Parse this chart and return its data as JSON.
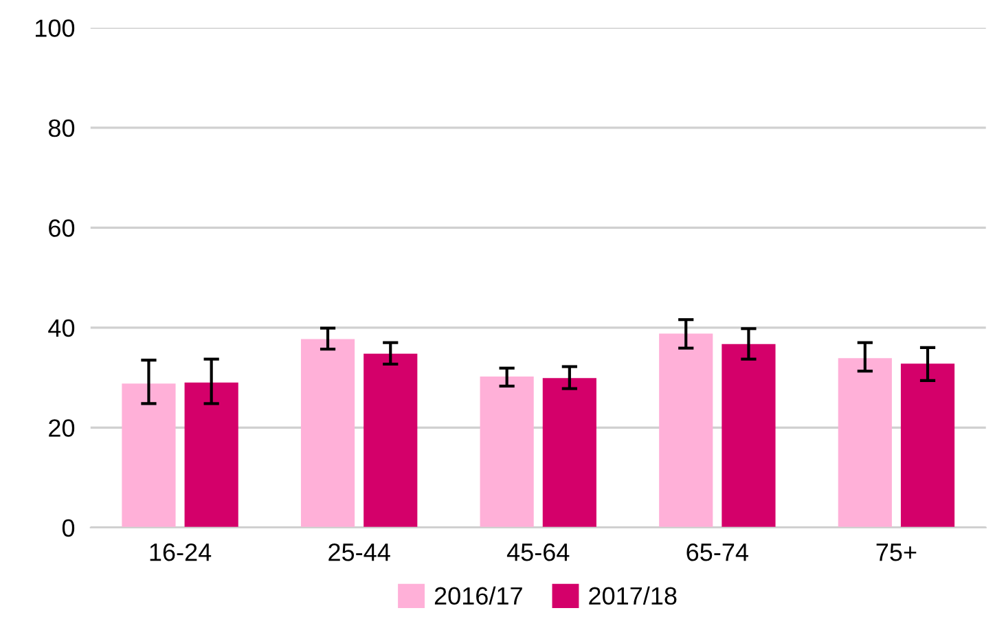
{
  "chart_data": {
    "type": "bar",
    "categories": [
      "16-24",
      "25-44",
      "45-64",
      "65-74",
      "75+"
    ],
    "series": [
      {
        "name": "2016/17",
        "color": "#ffb0d8",
        "values": [
          28.8,
          37.7,
          30.2,
          38.8,
          33.9
        ],
        "errors": [
          [
            24.8,
            33.5
          ],
          [
            35.7,
            39.9
          ],
          [
            28.3,
            31.9
          ],
          [
            35.9,
            41.6
          ],
          [
            31.3,
            37.0
          ]
        ]
      },
      {
        "name": "2017/18",
        "color": "#d4006a",
        "values": [
          29.0,
          34.8,
          29.9,
          36.7,
          32.8
        ],
        "errors": [
          [
            24.8,
            33.7
          ],
          [
            32.7,
            37.0
          ],
          [
            27.8,
            32.2
          ],
          [
            33.7,
            39.8
          ],
          [
            29.4,
            36.0
          ]
        ]
      }
    ],
    "ylim": [
      0,
      100
    ],
    "yticks": [
      0,
      20,
      40,
      60,
      80,
      100
    ],
    "grid": "y",
    "legend": "bottom"
  }
}
